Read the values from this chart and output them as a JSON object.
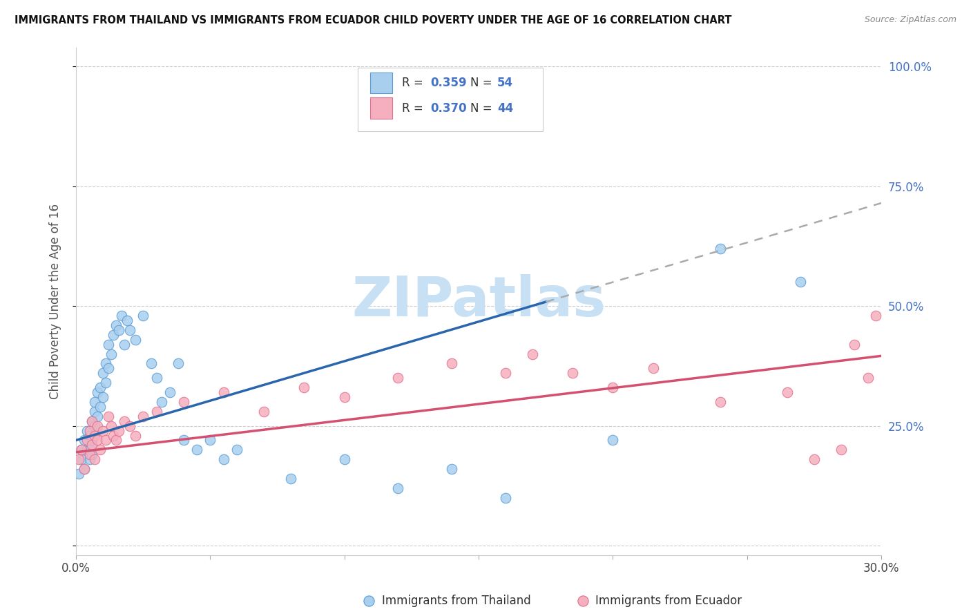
{
  "title": "IMMIGRANTS FROM THAILAND VS IMMIGRANTS FROM ECUADOR CHILD POVERTY UNDER THE AGE OF 16 CORRELATION CHART",
  "source": "Source: ZipAtlas.com",
  "ylabel": "Child Poverty Under the Age of 16",
  "xmin": 0.0,
  "xmax": 0.3,
  "ymin": -0.02,
  "ymax": 1.04,
  "yticks": [
    0.0,
    0.25,
    0.5,
    0.75,
    1.0
  ],
  "ytick_labels": [
    "",
    "25.0%",
    "50.0%",
    "75.0%",
    "100.0%"
  ],
  "xticks": [
    0.0,
    0.05,
    0.1,
    0.15,
    0.2,
    0.25,
    0.3
  ],
  "xtick_labels": [
    "0.0%",
    "",
    "",
    "",
    "",
    "",
    "30.0%"
  ],
  "legend_r1": "0.359",
  "legend_n1": "54",
  "legend_r2": "0.370",
  "legend_n2": "44",
  "thailand_color": "#A8CFEE",
  "thailand_edge": "#5B9BD5",
  "ecuador_color": "#F5AFBE",
  "ecuador_edge": "#E07090",
  "trend_thailand_color": "#2966AC",
  "trend_ecuador_color": "#D45070",
  "trend_dash_color": "#AAAAAA",
  "watermark_color": "#C8E0F4",
  "thailand_x": [
    0.001,
    0.002,
    0.002,
    0.003,
    0.003,
    0.004,
    0.004,
    0.005,
    0.005,
    0.005,
    0.006,
    0.006,
    0.006,
    0.007,
    0.007,
    0.007,
    0.008,
    0.008,
    0.009,
    0.009,
    0.01,
    0.01,
    0.011,
    0.011,
    0.012,
    0.012,
    0.013,
    0.014,
    0.015,
    0.016,
    0.017,
    0.018,
    0.019,
    0.02,
    0.022,
    0.025,
    0.028,
    0.03,
    0.032,
    0.035,
    0.038,
    0.04,
    0.045,
    0.05,
    0.055,
    0.06,
    0.08,
    0.1,
    0.12,
    0.14,
    0.16,
    0.2,
    0.24,
    0.27
  ],
  "thailand_y": [
    0.15,
    0.18,
    0.2,
    0.16,
    0.22,
    0.2,
    0.24,
    0.18,
    0.2,
    0.23,
    0.26,
    0.22,
    0.19,
    0.28,
    0.25,
    0.3,
    0.32,
    0.27,
    0.33,
    0.29,
    0.36,
    0.31,
    0.38,
    0.34,
    0.42,
    0.37,
    0.4,
    0.44,
    0.46,
    0.45,
    0.48,
    0.42,
    0.47,
    0.45,
    0.43,
    0.48,
    0.38,
    0.35,
    0.3,
    0.32,
    0.38,
    0.22,
    0.2,
    0.22,
    0.18,
    0.2,
    0.14,
    0.18,
    0.12,
    0.16,
    0.1,
    0.22,
    0.62,
    0.55
  ],
  "ecuador_x": [
    0.001,
    0.002,
    0.003,
    0.004,
    0.005,
    0.005,
    0.006,
    0.006,
    0.007,
    0.007,
    0.008,
    0.008,
    0.009,
    0.01,
    0.011,
    0.012,
    0.013,
    0.014,
    0.015,
    0.016,
    0.018,
    0.02,
    0.022,
    0.025,
    0.03,
    0.04,
    0.055,
    0.07,
    0.085,
    0.1,
    0.12,
    0.14,
    0.16,
    0.17,
    0.185,
    0.2,
    0.215,
    0.24,
    0.265,
    0.275,
    0.285,
    0.29,
    0.295,
    0.298
  ],
  "ecuador_y": [
    0.18,
    0.2,
    0.16,
    0.22,
    0.19,
    0.24,
    0.21,
    0.26,
    0.18,
    0.23,
    0.25,
    0.22,
    0.2,
    0.24,
    0.22,
    0.27,
    0.25,
    0.23,
    0.22,
    0.24,
    0.26,
    0.25,
    0.23,
    0.27,
    0.28,
    0.3,
    0.32,
    0.28,
    0.33,
    0.31,
    0.35,
    0.38,
    0.36,
    0.4,
    0.36,
    0.33,
    0.37,
    0.3,
    0.32,
    0.18,
    0.2,
    0.42,
    0.35,
    0.48
  ]
}
